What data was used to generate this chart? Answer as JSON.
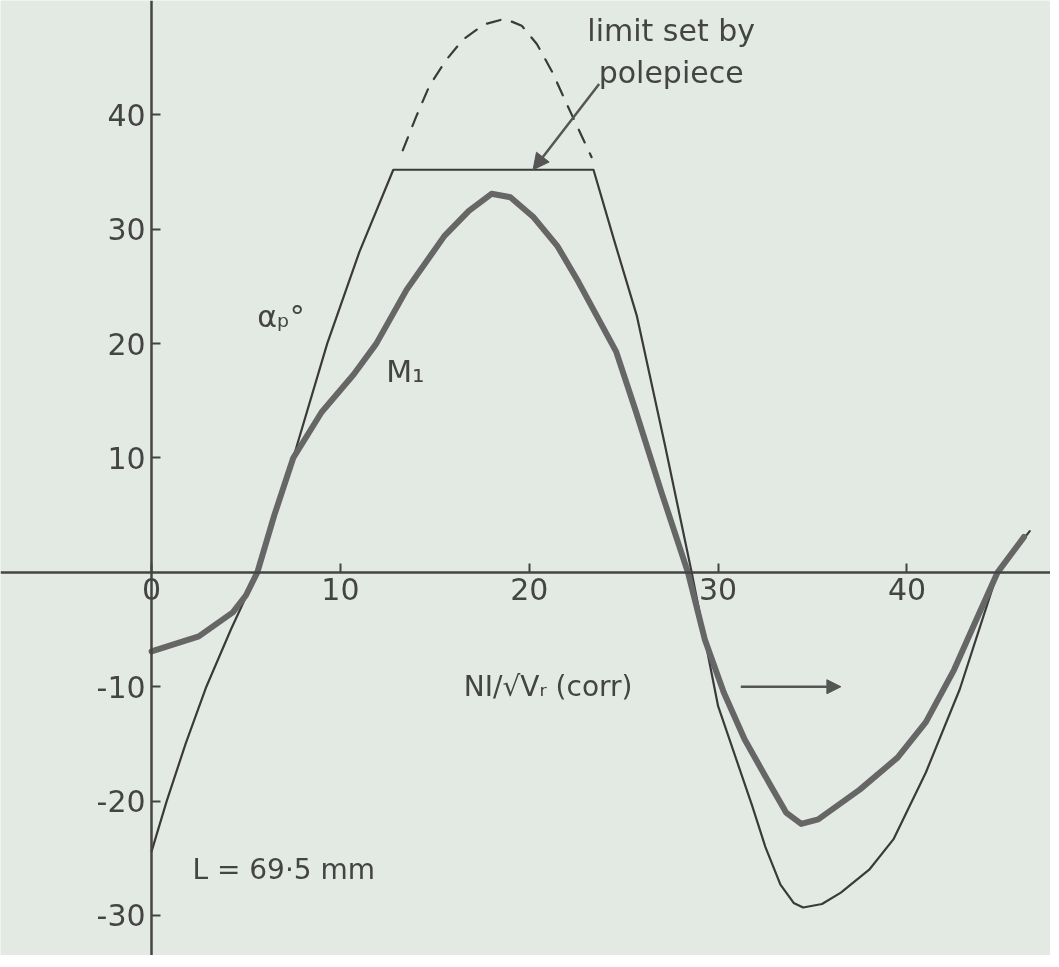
{
  "chart_data": {
    "type": "line",
    "xlabel": "NI/√Vᵣ (corr)",
    "xlim": [
      -8,
      47.6
    ],
    "ylim": [
      -33.5,
      50
    ],
    "xticks": [
      0,
      10,
      20,
      30,
      40
    ],
    "yticks": [
      -30,
      -20,
      -10,
      10,
      20,
      30,
      40
    ],
    "marker": "none",
    "series": [
      {
        "name": "αₚ°",
        "color": "#3a3a3a",
        "line_style": "solid",
        "x": [
          0,
          0.8,
          1.8,
          2.9,
          4.2,
          5.6,
          7.5,
          9.3,
          11,
          12.8,
          23.4,
          24.5,
          25.7,
          27.2,
          28.6,
          30.0,
          31.8,
          32.5,
          33.3,
          34.0,
          34.5,
          35.5,
          36.5,
          38,
          39.3,
          41,
          42.8,
          44.8,
          46.5
        ],
        "values": [
          -24.4,
          -20,
          -15,
          -10,
          -5,
          0,
          10,
          20,
          28,
          35.2,
          35.2,
          29,
          22.4,
          11,
          0,
          -11.7,
          -20.4,
          -24,
          -27.3,
          -28.9,
          -29.3,
          -29,
          -28,
          -26,
          -23.3,
          -17.5,
          -10.2,
          0,
          3.6
        ]
      },
      {
        "color": "#3a3a3a",
        "line_style": "dashed",
        "x": [
          13.3,
          14.0,
          14.7,
          15.6,
          16.5,
          17.6,
          18.7,
          19.6,
          20.4,
          21.2,
          22.0,
          23.3
        ],
        "values": [
          36.9,
          39.8,
          42.5,
          44.8,
          46.6,
          47.9,
          48.4,
          47.8,
          46.2,
          43.8,
          40.9,
          36.3
        ]
      },
      {
        "name": "M₁",
        "color": "#666666",
        "line_style": "solid",
        "x": [
          0,
          2.5,
          4.3,
          5.0,
          5.6,
          6.5,
          7.5,
          9,
          10.7,
          11.9,
          13.5,
          15.5,
          16.8,
          18.0,
          19.0,
          20.2,
          21.5,
          22.6,
          24.6,
          25.6,
          27,
          28.4,
          29.3,
          30.3,
          31.4,
          32.8,
          33.6,
          34.4,
          35.3,
          37.5,
          39.5,
          41,
          42.5,
          43.6,
          44.8,
          46.2
        ],
        "values": [
          -6.9,
          -5.6,
          -3.5,
          -2,
          0,
          5,
          10,
          14,
          17.3,
          20,
          24.7,
          29.4,
          31.6,
          33.1,
          32.8,
          31.1,
          28.5,
          25.4,
          19.3,
          14.3,
          7,
          0,
          -5.9,
          -10.5,
          -14.6,
          -18.7,
          -21,
          -22,
          -21.6,
          -19,
          -16.2,
          -13.1,
          -8.5,
          -4.4,
          0,
          3.1
        ]
      }
    ],
    "annotations": [
      {
        "text": "limit set by\npolepiece",
        "x": 20.2,
        "y": 35.2
      },
      "L = 69·5 mm"
    ]
  }
}
